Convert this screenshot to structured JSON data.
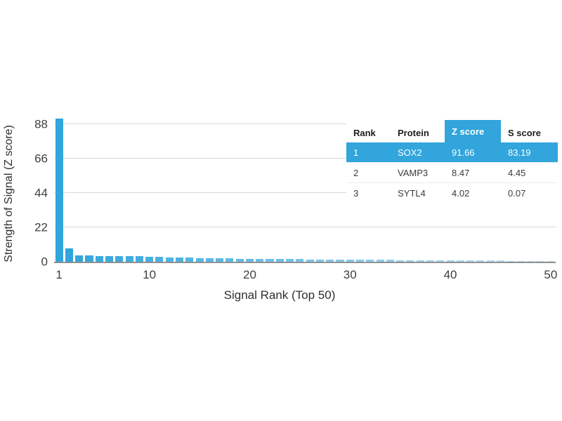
{
  "chart_data": {
    "type": "bar",
    "title": "",
    "xlabel": "Signal Rank (Top 50)",
    "ylabel": "Strength of Signal (Z score)",
    "x_range": [
      1,
      50
    ],
    "yticks": [
      0,
      22,
      44,
      66,
      88
    ],
    "xticks": [
      1,
      10,
      20,
      30,
      40,
      50
    ],
    "ylim": [
      0,
      93.4
    ],
    "grid": "horizontal",
    "legend": "none",
    "bar_color": "#31a5dc",
    "bar_fade": "opacity decreases with rank",
    "gridline_color": "#d9d9d9",
    "axis_line_color": "#919191",
    "values": [
      91.66,
      8.47,
      4.02,
      3.9,
      3.8,
      3.7,
      3.6,
      3.5,
      3.4,
      3.3,
      3.0,
      2.8,
      2.6,
      2.5,
      2.4,
      2.3,
      2.2,
      2.1,
      2.0,
      1.9,
      1.8,
      1.75,
      1.7,
      1.65,
      1.6,
      1.55,
      1.5,
      1.45,
      1.4,
      1.35,
      1.3,
      1.25,
      1.2,
      1.15,
      1.1,
      1.05,
      1.0,
      0.95,
      0.9,
      0.85,
      0.8,
      0.78,
      0.75,
      0.72,
      0.7,
      0.68,
      0.65,
      0.62,
      0.6,
      0.58
    ]
  },
  "table": {
    "columns": [
      "Rank",
      "Protein",
      "Z score",
      "S score"
    ],
    "highlight_column_index": 2,
    "highlight_color": "#31a5dc",
    "rows": [
      {
        "rank": "1",
        "protein": "SOX2",
        "z_score": "91.66",
        "s_score": "83.19",
        "highlighted": true
      },
      {
        "rank": "2",
        "protein": "VAMP3",
        "z_score": "8.47",
        "s_score": "4.45",
        "highlighted": false
      },
      {
        "rank": "3",
        "protein": "SYTL4",
        "z_score": "4.02",
        "s_score": "0.07",
        "highlighted": false
      }
    ]
  }
}
